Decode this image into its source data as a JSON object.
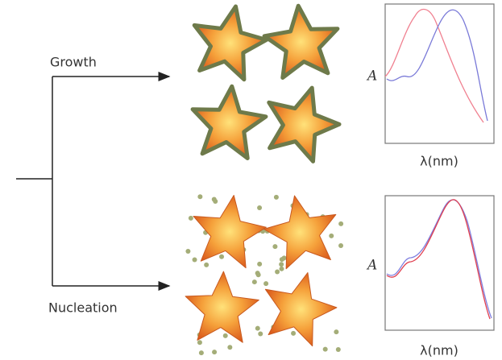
{
  "branches": [
    {
      "label": "Growth",
      "plot": {
        "y_label": "A",
        "x_label": "λ(nm)"
      }
    },
    {
      "label": "Nucleation",
      "plot": {
        "y_label": "A",
        "x_label": "λ(nm)"
      }
    }
  ]
}
